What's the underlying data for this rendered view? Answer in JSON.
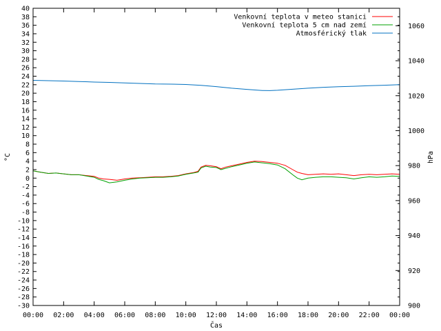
{
  "chart_data": {
    "type": "line",
    "xlabel": "Čas",
    "ylabel": "°C",
    "y2label": "hPa",
    "x_tick_labels": [
      "00:00",
      "02:00",
      "04:00",
      "06:00",
      "08:00",
      "10:00",
      "12:00",
      "14:00",
      "16:00",
      "18:00",
      "20:00",
      "22:00",
      "00:00"
    ],
    "xlim": [
      0,
      24
    ],
    "ylim": [
      -30,
      40
    ],
    "y_tick_step": 2,
    "y2lim": [
      900,
      1070
    ],
    "y2_ticks": [
      900,
      920,
      940,
      960,
      980,
      1000,
      1020,
      1040,
      1060
    ],
    "grid": false,
    "legend_position": "top-right",
    "series": [
      {
        "name": "Venkovní teplota v meteo stanici",
        "color": "#ff0000",
        "axis": "left",
        "x": [
          0,
          0.5,
          1,
          1.5,
          2,
          2.5,
          3,
          3.5,
          4,
          4.3,
          4.6,
          5,
          5.5,
          6,
          6.5,
          7,
          7.5,
          8,
          8.5,
          9,
          9.5,
          10,
          10.5,
          10.8,
          11,
          11.3,
          11.6,
          12,
          12.3,
          12.6,
          13,
          13.5,
          14,
          14.5,
          15,
          15.5,
          16,
          16.5,
          17,
          17.3,
          17.6,
          18,
          18.5,
          19,
          19.5,
          20,
          20.5,
          21,
          21.5,
          22,
          22.5,
          23,
          23.5,
          24
        ],
        "values": [
          1.7,
          1.4,
          1.1,
          1.2,
          1.0,
          0.8,
          0.8,
          0.6,
          0.4,
          0.0,
          -0.2,
          -0.3,
          -0.5,
          -0.2,
          0.0,
          0.1,
          0.2,
          0.3,
          0.3,
          0.4,
          0.6,
          1.0,
          1.3,
          1.6,
          2.6,
          3.0,
          2.9,
          2.7,
          2.2,
          2.6,
          2.9,
          3.3,
          3.7,
          4.0,
          3.9,
          3.7,
          3.5,
          3.0,
          2.0,
          1.4,
          1.1,
          0.8,
          0.9,
          1.0,
          0.9,
          1.0,
          0.8,
          0.6,
          0.8,
          0.9,
          0.8,
          0.9,
          1.0,
          0.9
        ]
      },
      {
        "name": "Venkovní teplota 5 cm nad zemí",
        "color": "#00a000",
        "axis": "left",
        "x": [
          0,
          0.5,
          1,
          1.5,
          2,
          2.5,
          3,
          3.5,
          4,
          4.3,
          4.6,
          5,
          5.5,
          6,
          6.5,
          7,
          7.5,
          8,
          8.5,
          9,
          9.5,
          10,
          10.5,
          10.8,
          11,
          11.3,
          11.6,
          12,
          12.3,
          12.6,
          13,
          13.5,
          14,
          14.5,
          15,
          15.5,
          16,
          16.5,
          17,
          17.3,
          17.6,
          18,
          18.5,
          19,
          19.5,
          20,
          20.5,
          21,
          21.5,
          22,
          22.5,
          23,
          23.5,
          24
        ],
        "values": [
          1.7,
          1.4,
          1.1,
          1.2,
          1.0,
          0.8,
          0.8,
          0.5,
          0.2,
          -0.3,
          -0.6,
          -1.1,
          -0.9,
          -0.5,
          -0.2,
          0.0,
          0.1,
          0.2,
          0.2,
          0.3,
          0.5,
          0.9,
          1.2,
          1.4,
          2.4,
          2.8,
          2.6,
          2.5,
          2.0,
          2.3,
          2.7,
          3.1,
          3.5,
          3.8,
          3.6,
          3.4,
          3.1,
          2.2,
          0.8,
          0.0,
          -0.4,
          0.0,
          0.2,
          0.3,
          0.3,
          0.2,
          0.1,
          -0.2,
          0.1,
          0.3,
          0.2,
          0.3,
          0.5,
          0.4
        ]
      },
      {
        "name": "Atmosférický tlak",
        "color": "#0070c0",
        "axis": "right",
        "x": [
          0,
          1,
          2,
          3,
          4,
          5,
          6,
          7,
          8,
          9,
          10,
          11,
          12,
          13,
          14,
          15,
          15.5,
          16,
          17,
          18,
          19,
          20,
          21,
          22,
          23,
          24
        ],
        "values": [
          1028.8,
          1028.6,
          1028.4,
          1028.1,
          1027.8,
          1027.6,
          1027.3,
          1027.0,
          1026.7,
          1026.6,
          1026.4,
          1025.9,
          1025.2,
          1024.3,
          1023.6,
          1023.0,
          1022.9,
          1023.1,
          1023.7,
          1024.3,
          1024.8,
          1025.1,
          1025.4,
          1025.7,
          1026.0,
          1026.3
        ]
      }
    ]
  }
}
